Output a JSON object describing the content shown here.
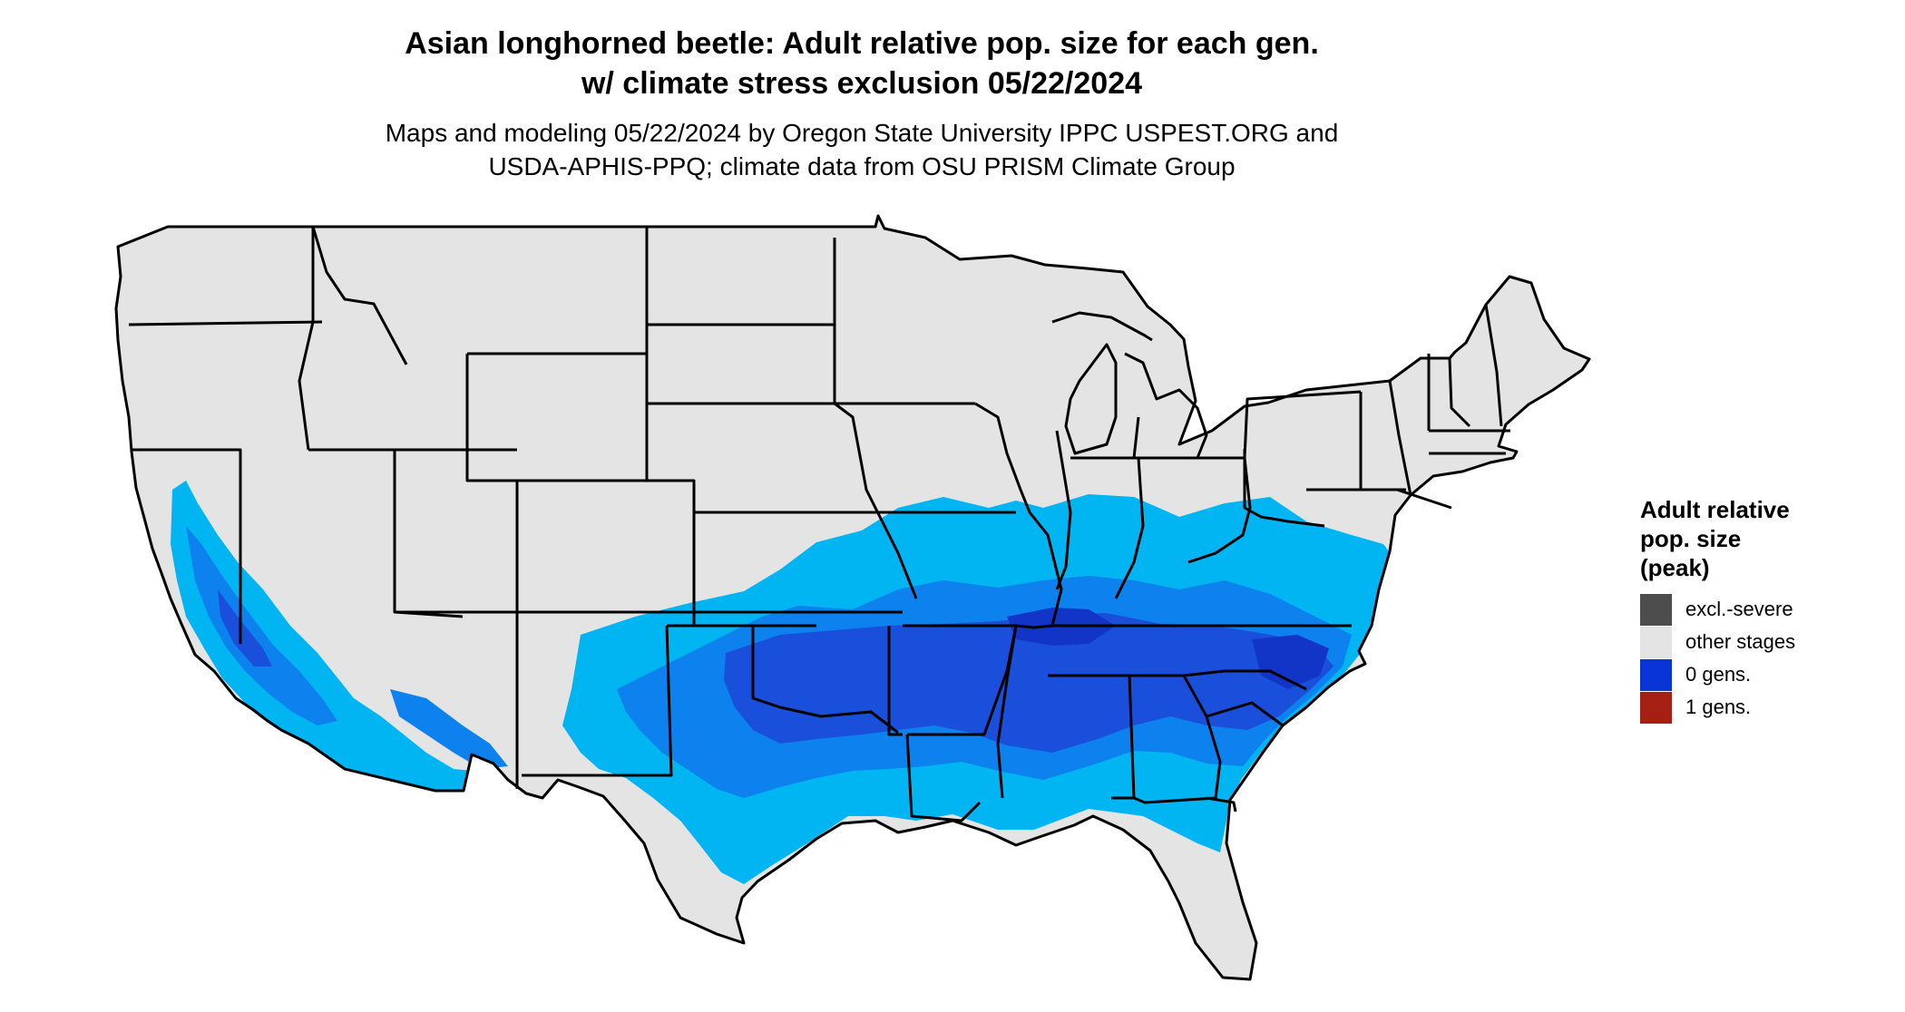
{
  "title": {
    "line1": "Asian longhorned beetle: Adult relative pop. size for each gen.",
    "line2": "w/ climate stress exclusion 05/22/2024"
  },
  "subtitle": {
    "line1": "Maps and modeling 05/22/2024 by Oregon State University IPPC USPEST.ORG and",
    "line2": "USDA-APHIS-PPQ; climate data from OSU PRISM Climate Group"
  },
  "legend": {
    "title_line1": "Adult relative",
    "title_line2": "pop. size",
    "title_line3": "(peak)",
    "items": [
      {
        "label": "excl.-severe",
        "color": "#4d4d4d"
      },
      {
        "label": "other stages",
        "color": "#e4e4e4"
      },
      {
        "label": "0 gens.",
        "color": "#0a35d6"
      },
      {
        "label": "1 gens.",
        "color": "#a51f14"
      }
    ]
  },
  "map_colors": {
    "land": "#e4e4e4",
    "light_blue": "#00b5f2",
    "mid_blue": "#0d82ee",
    "deep_blue": "#1a4fdb",
    "darkest_blue": "#1235c7",
    "border": "#000000"
  }
}
